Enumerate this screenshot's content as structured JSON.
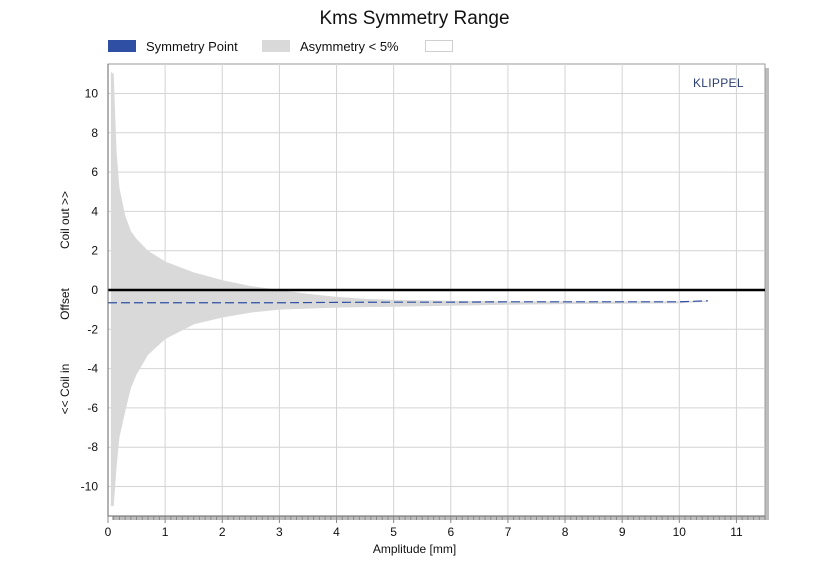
{
  "chart_data": {
    "type": "area",
    "title": "Kms Symmetry Range",
    "xlabel": "Amplitude [mm]",
    "ylabel_lines": [
      "<< Coil in",
      "Offset",
      "Coil out >>"
    ],
    "watermark": "KLIPPEL",
    "xlim": [
      0,
      11.5
    ],
    "ylim": [
      -11.5,
      11.5
    ],
    "x_ticks": [
      0,
      1,
      2,
      3,
      4,
      5,
      6,
      7,
      8,
      9,
      10,
      11
    ],
    "y_ticks": [
      -10,
      -8,
      -6,
      -4,
      -2,
      0,
      2,
      4,
      6,
      8,
      10
    ],
    "grid": true,
    "legend_position": "top",
    "legend": [
      {
        "label": "Symmetry Point",
        "color": "#2e4fa3"
      },
      {
        "label": "Asymmetry < 5%",
        "color": "#d9d9d9"
      },
      {
        "label": "",
        "color": "#ffffff"
      }
    ],
    "series": [
      {
        "name": "Asymmetry < 5%",
        "kind": "band",
        "color": "#d9d9d9",
        "x": [
          0.05,
          0.1,
          0.15,
          0.2,
          0.3,
          0.4,
          0.5,
          0.7,
          1.0,
          1.5,
          2.0,
          2.5,
          3.0,
          3.5,
          4.0,
          4.5,
          5.0,
          6.0,
          7.0,
          8.0,
          9.0,
          10.0,
          10.5
        ],
        "upper": [
          11.1,
          11.0,
          7.0,
          5.2,
          3.8,
          3.0,
          2.6,
          2.0,
          1.45,
          0.9,
          0.5,
          0.2,
          0.0,
          -0.2,
          -0.35,
          -0.45,
          -0.5,
          -0.55,
          -0.58,
          -0.58,
          -0.58,
          -0.58,
          -0.55
        ],
        "lower": [
          -11.0,
          -11.0,
          -9.0,
          -7.5,
          -6.2,
          -5.0,
          -4.3,
          -3.3,
          -2.5,
          -1.75,
          -1.4,
          -1.15,
          -1.0,
          -0.95,
          -0.9,
          -0.87,
          -0.85,
          -0.8,
          -0.75,
          -0.72,
          -0.7,
          -0.68,
          -0.6
        ]
      },
      {
        "name": "Symmetry Point",
        "kind": "line",
        "color": "#2e4fa3",
        "dashed": true,
        "x": [
          0.0,
          1.0,
          2.0,
          3.0,
          4.0,
          5.0,
          6.0,
          7.0,
          8.0,
          9.0,
          10.0,
          10.5
        ],
        "y": [
          -0.65,
          -0.65,
          -0.65,
          -0.65,
          -0.63,
          -0.62,
          -0.62,
          -0.6,
          -0.6,
          -0.6,
          -0.6,
          -0.55
        ]
      },
      {
        "name": "",
        "kind": "baseline",
        "color": "#000000",
        "x": [
          0.0,
          11.5
        ],
        "y": [
          0.0,
          0.0
        ]
      }
    ]
  }
}
